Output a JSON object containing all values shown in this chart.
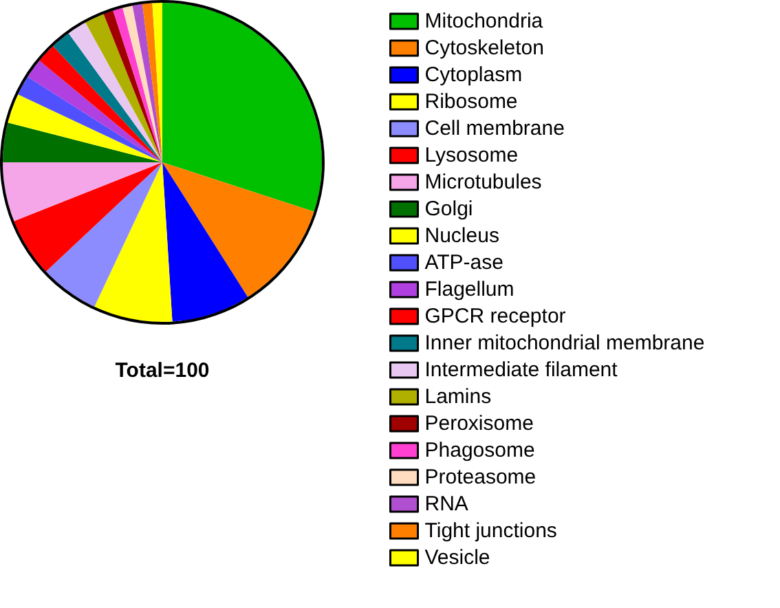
{
  "chart_data": {
    "type": "pie",
    "annotations": [
      "Total=100"
    ],
    "legend": "right",
    "categories": [
      "Mitochondria",
      "Cytoskeleton",
      "Cytoplasm",
      "Ribosome",
      "Cell membrane",
      "Lysosome",
      "Microtubules",
      "Golgi",
      "Nucleus",
      "ATP-ase",
      "Flagellum",
      "GPCR receptor",
      "Inner mitochondrial membrane",
      "Intermediate filament",
      "Lamins",
      "Peroxisome",
      "Phagosome",
      "Proteasome",
      "RNA",
      "Tight junctions",
      "Vesicle"
    ],
    "values": [
      30,
      11,
      8,
      8,
      6,
      6,
      6,
      4,
      3,
      2,
      2,
      2,
      2,
      2,
      2,
      1,
      1,
      1,
      1,
      1,
      1
    ],
    "colors": [
      "#00c000",
      "#ff8000",
      "#0000ff",
      "#ffff00",
      "#8c8cff",
      "#ff0000",
      "#f5a6e8",
      "#007000",
      "#ffff00",
      "#5050ff",
      "#b040e0",
      "#ff0000",
      "#007a8a",
      "#e8c8f0",
      "#b0b000",
      "#a00000",
      "#ff40d0",
      "#ffdcc0",
      "#b050d0",
      "#ff8000",
      "#ffff00"
    ]
  }
}
